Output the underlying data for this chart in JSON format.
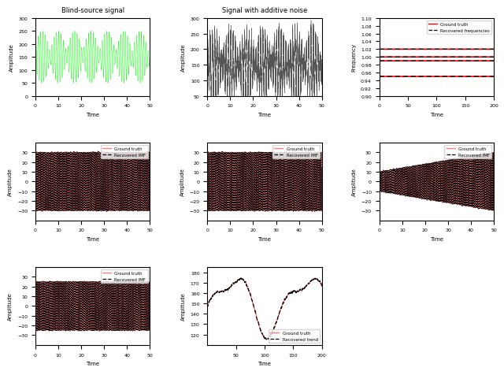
{
  "fig_width": 6.4,
  "fig_height": 4.77,
  "dpi": 100,
  "plot1": {
    "title": "Blind-source signal",
    "xlabel": "Time",
    "ylabel": "Amplitude",
    "color": "#00ff00",
    "xlim": [
      0,
      50
    ],
    "ylim": [
      0,
      300
    ],
    "xticks": [
      0,
      10,
      20,
      30,
      40,
      50
    ]
  },
  "plot2": {
    "title": "Signal with additive noise",
    "xlabel": "Time",
    "ylabel": "Amplitude",
    "color": "#555555",
    "xlim": [
      0,
      50
    ],
    "ylim": [
      50,
      300
    ],
    "xticks": [
      0,
      10,
      20,
      30,
      40,
      50
    ]
  },
  "plot3": {
    "xlabel": "Time",
    "ylabel": "Frequency",
    "xlim": [
      0,
      200
    ],
    "ylim": [
      0.9,
      1.1
    ],
    "yticks": [
      0.9,
      0.92,
      0.94,
      0.96,
      0.98,
      1.0,
      1.02,
      1.04,
      1.06,
      1.08,
      1.1
    ],
    "xticks": [
      0,
      50,
      100,
      150,
      200
    ],
    "freq_lines": [
      1.02,
      1.0,
      0.99,
      0.95
    ],
    "gt_color": "#ff0000",
    "rec_color": "#000000"
  },
  "plot4": {
    "xlabel": "Time",
    "ylabel": "Amplitude",
    "xlim": [
      0,
      50
    ],
    "ylim": [
      -40,
      40
    ],
    "gt_color": "#ff8080",
    "rec_color": "#000000",
    "freq": 3.0,
    "amp": 30.0,
    "amp_vary": 0.0
  },
  "plot5": {
    "xlabel": "Time",
    "ylabel": "Amplitude",
    "xlim": [
      0,
      50
    ],
    "ylim": [
      -40,
      40
    ],
    "gt_color": "#ff8080",
    "rec_color": "#000000",
    "freq": 3.0,
    "amp": 30.0,
    "amp_vary": 0.0
  },
  "plot6": {
    "xlabel": "Time",
    "ylabel": "Amplitude",
    "xlim": [
      0,
      50
    ],
    "ylim": [
      -40,
      40
    ],
    "gt_color": "#ff8080",
    "rec_color": "#000000",
    "freq": 3.0,
    "amp_start": 10.0,
    "amp_end": 30.0
  },
  "plot7": {
    "xlabel": "Time",
    "ylabel": "Amplitude",
    "xlim": [
      0,
      50
    ],
    "ylim": [
      -40,
      40
    ],
    "gt_color": "#ff8080",
    "rec_color": "#000000",
    "freq": 3.0,
    "amp": 25.0
  },
  "plot8": {
    "xlabel": "Time",
    "ylabel": "Amplitude",
    "xlim": [
      0,
      200
    ],
    "ylim": [
      110,
      185
    ],
    "yticks": [
      120,
      130,
      140,
      150,
      160,
      170,
      180
    ],
    "xticks": [
      50,
      100,
      150,
      200
    ],
    "gt_color": "#ff8080",
    "rec_color": "#000000"
  },
  "legend_gt": "Ground truth",
  "legend_rec_imf": "Recovered IMF",
  "legend_rec_freq": "Recovered frequencies",
  "legend_rec_trend": "Recovered trend"
}
